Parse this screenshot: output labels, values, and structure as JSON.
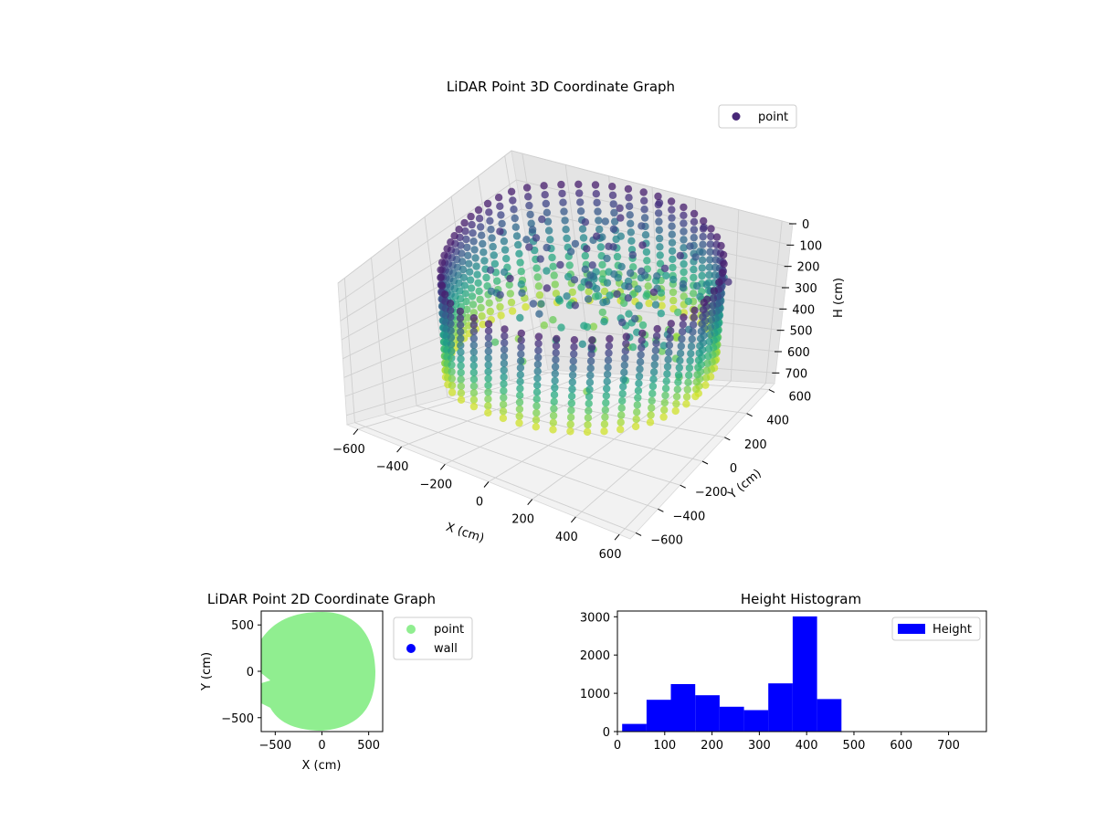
{
  "chart_data": [
    {
      "type": "scatter",
      "title": "LiDAR Point 3D Coordinate Graph",
      "xlabel": "X (cm)",
      "ylabel": "Y (cm)",
      "zlabel": "H (cm)",
      "xticks": [
        "−600",
        "−400",
        "−200",
        "0",
        "200",
        "400",
        "600"
      ],
      "yticks": [
        "−600",
        "−400",
        "−200",
        "0",
        "200",
        "400",
        "600"
      ],
      "zticks": [
        "0",
        "100",
        "200",
        "300",
        "400",
        "500",
        "600",
        "700"
      ],
      "xlim": [
        -650,
        650
      ],
      "ylim": [
        -650,
        650
      ],
      "zlim": [
        0,
        750
      ],
      "z_inverted": true,
      "colormap": "viridis",
      "legend": {
        "position": "top-right",
        "entries": [
          {
            "label": "point",
            "color": "#482878"
          }
        ]
      },
      "grid": true,
      "description_series": {
        "name": "point",
        "shape": "ring of vertical scan columns, radius ~600 cm, heights 0–470 cm, with scattered interior points"
      }
    },
    {
      "type": "scatter",
      "title": "LiDAR Point 2D Coordinate Graph",
      "xlabel": "X (cm)",
      "ylabel": "Y (cm)",
      "xticks": [
        "−500",
        "0",
        "500"
      ],
      "yticks": [
        "−500",
        "0",
        "500"
      ],
      "xlim": [
        -650,
        650
      ],
      "ylim": [
        -650,
        650
      ],
      "legend": {
        "position": "outside-right",
        "entries": [
          {
            "label": "point",
            "color": "#90ee90"
          },
          {
            "label": "wall",
            "color": "#0000ff"
          }
        ]
      },
      "series": [
        {
          "name": "point",
          "color": "#90ee90",
          "shape": "filled disc radius ~600 cm centered at origin"
        },
        {
          "name": "wall",
          "color": "#0000ff",
          "values": []
        }
      ]
    },
    {
      "type": "bar",
      "title": "Height Histogram",
      "xticks": [
        "0",
        "100",
        "200",
        "300",
        "400",
        "500",
        "600",
        "700"
      ],
      "yticks": [
        "0",
        "1000",
        "2000",
        "3000"
      ],
      "xlim": [
        0,
        780
      ],
      "ylim": [
        0,
        3150
      ],
      "legend": {
        "position": "top-right",
        "entries": [
          {
            "label": "Height",
            "color": "#0000ff"
          }
        ]
      },
      "bin_width": 51.5,
      "bins": [
        {
          "x0": 10,
          "value": 200
        },
        {
          "x0": 61.5,
          "value": 830
        },
        {
          "x0": 113,
          "value": 1240
        },
        {
          "x0": 164.5,
          "value": 950
        },
        {
          "x0": 216,
          "value": 650
        },
        {
          "x0": 267.5,
          "value": 560
        },
        {
          "x0": 319,
          "value": 1260
        },
        {
          "x0": 370.5,
          "value": 3010
        },
        {
          "x0": 422,
          "value": 850
        }
      ],
      "color": "#0000ff"
    }
  ]
}
